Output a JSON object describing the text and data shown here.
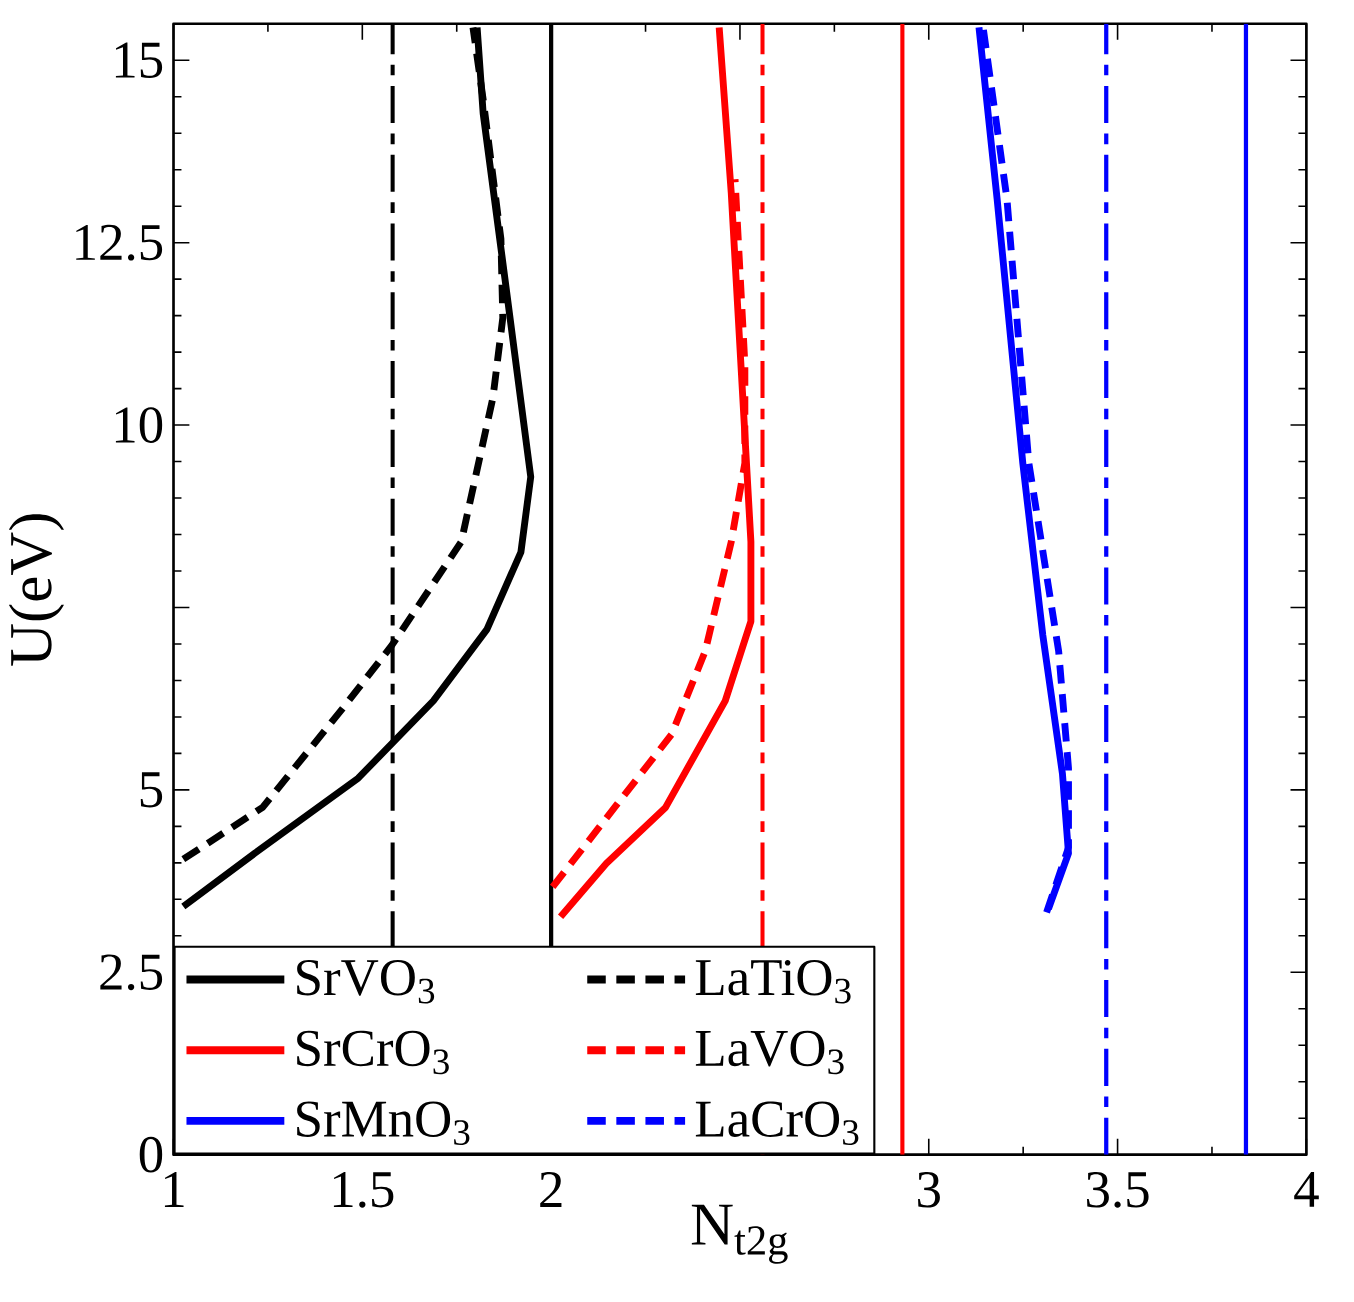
{
  "chart_data": {
    "type": "line",
    "xlabel": "N$_{t2g}$",
    "ylabel": "U(eV)",
    "xlim": [
      1,
      4
    ],
    "ylim": [
      0,
      15.5
    ],
    "xticks": [
      1,
      1.5,
      2,
      {
        "value": 2.5,
        "label": null
      },
      3,
      3.5,
      4
    ],
    "yticks": [
      0,
      2.5,
      5,
      {
        "value": 7.5,
        "label": null
      },
      10,
      12.5,
      15
    ],
    "grid": false,
    "legend": "bottom left",
    "series": [
      {
        "name": "SrVO$_{3}$",
        "color": "#000000",
        "line_style": "solid",
        "x": [
          1.026,
          1.215,
          1.489,
          1.688,
          1.83,
          1.92,
          1.946,
          1.872,
          1.82,
          1.804
        ],
        "values": [
          3.4,
          4.13,
          5.16,
          6.22,
          7.2,
          8.26,
          9.29,
          12.23,
          14.27,
          15.45
        ]
      },
      {
        "name": "LaTiO$_{3}$",
        "color": "#000000",
        "line_style": "dashed",
        "x": [
          1.026,
          1.236,
          1.447,
          1.578,
          1.762,
          1.846,
          1.872,
          1.867,
          1.82,
          1.793
        ],
        "values": [
          4.05,
          4.76,
          6.11,
          6.98,
          8.4,
          10.38,
          11.47,
          12.55,
          14.46,
          15.45
        ]
      },
      {
        "name": "SrCrO$_{3}$",
        "color": "#ff0000",
        "line_style": "solid",
        "x": [
          2.025,
          2.146,
          2.303,
          2.461,
          2.529,
          2.529,
          2.477,
          2.445
        ],
        "values": [
          3.26,
          3.99,
          4.76,
          6.22,
          7.31,
          8.4,
          13.18,
          15.45
        ]
      },
      {
        "name": "LaVO$_{3}$",
        "color": "#ff0000",
        "line_style": "dashed",
        "x": [
          2.004,
          2.319,
          2.408,
          2.477,
          2.513,
          2.513,
          2.487
        ],
        "values": [
          3.67,
          5.76,
          6.9,
          8.4,
          9.48,
          10.84,
          13.37
        ]
      },
      {
        "name": "SrMnO$_{3}$",
        "color": "#0000ff",
        "line_style": "solid",
        "x": [
          3.317,
          3.37,
          3.354,
          3.302,
          3.249,
          3.181,
          3.133
        ],
        "values": [
          3.37,
          4.13,
          5.22,
          7.12,
          9.48,
          13.1,
          15.45
        ]
      },
      {
        "name": "LaCrO$_{3}$",
        "color": "#0000ff",
        "line_style": "dashed",
        "x": [
          3.312,
          3.37,
          3.37,
          3.344,
          3.265,
          3.207,
          3.144
        ],
        "values": [
          3.32,
          4.21,
          5.3,
          6.9,
          9.48,
          13.1,
          15.45
        ]
      }
    ],
    "ref_lines": [
      {
        "axis": "x",
        "value": 1.58,
        "color": "#000000",
        "line_style": "dashdot"
      },
      {
        "axis": "x",
        "value": 2,
        "color": "#000000",
        "line_style": "solid"
      },
      {
        "axis": "x",
        "value": 2.56,
        "color": "#ff0000",
        "line_style": "dashdot"
      },
      {
        "axis": "x",
        "value": 2.93,
        "color": "#ff0000",
        "line_style": "solid"
      },
      {
        "axis": "x",
        "value": 3.47,
        "color": "#0000ff",
        "line_style": "dashdot"
      },
      {
        "axis": "x",
        "value": 3.84,
        "color": "#0000ff",
        "line_style": "solid"
      }
    ]
  }
}
